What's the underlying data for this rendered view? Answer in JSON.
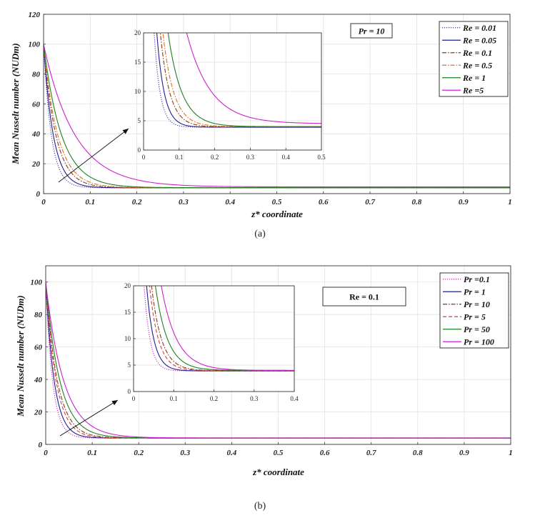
{
  "figure": {
    "panels": [
      {
        "id": "a",
        "caption": "(a)",
        "chart_data": {
          "type": "line",
          "title": "",
          "xlabel": "z* coordinate",
          "ylabel": "Mean Nusselt number (NUDm)",
          "xlim": [
            0,
            1
          ],
          "ylim": [
            0,
            120
          ],
          "xticks": [
            0,
            0.1,
            0.2,
            0.3,
            0.4,
            0.5,
            0.6,
            0.7,
            0.8,
            0.9,
            1
          ],
          "xtick_labels": [
            "0",
            "0.1",
            "0.2",
            "0.3",
            "0.4",
            "0.5",
            "0.6",
            "0.7",
            "0.8",
            "0.9",
            "1"
          ],
          "yticks": [
            0,
            20,
            40,
            60,
            80,
            100,
            120
          ],
          "ytick_labels": [
            "0",
            "20",
            "40",
            "60",
            "80",
            "100",
            "120"
          ],
          "grid": true,
          "legend_position": "top-right",
          "annotation": "Pr  = 10",
          "asymptote": 4.0,
          "series": [
            {
              "name": "Re = 0.01",
              "color": "#5a2ca0",
              "dash": "dotted",
              "decay": 60,
              "limit": 3.9
            },
            {
              "name": "Re = 0.05",
              "color": "#1f1f8f",
              "dash": "solid",
              "decay": 48,
              "limit": 3.9
            },
            {
              "name": "Re = 0.1",
              "color": "#8b3a1a",
              "dash": "dashdot",
              "decay": 38,
              "limit": 3.95
            },
            {
              "name": "Re = 0.5",
              "color": "#e07020",
              "dash": "dashdot",
              "decay": 33,
              "limit": 4.0
            },
            {
              "name": "Re = 1",
              "color": "#208020",
              "dash": "solid",
              "decay": 26,
              "limit": 4.0
            },
            {
              "name": "Re =5",
              "color": "#cc22cc",
              "dash": "solid",
              "decay": 15,
              "limit": 4.5
            }
          ],
          "inset": {
            "xlim": [
              0,
              0.5
            ],
            "ylim": [
              0,
              20
            ],
            "xticks": [
              0,
              0.1,
              0.2,
              0.3,
              0.4,
              0.5
            ],
            "xtick_labels": [
              "0",
              "0.1",
              "0.2",
              "0.3",
              "0.4",
              "0.5"
            ],
            "yticks": [
              0,
              5,
              10,
              15,
              20
            ],
            "ytick_labels": [
              "0",
              "5",
              "10",
              "15",
              "20"
            ]
          }
        }
      },
      {
        "id": "b",
        "caption": "(b)",
        "chart_data": {
          "type": "line",
          "title": "",
          "xlabel": "z* coordinate",
          "ylabel": "Mean Nusselt number (NUDm)",
          "xlim": [
            0,
            1
          ],
          "ylim": [
            0,
            110
          ],
          "xticks": [
            0,
            0.1,
            0.2,
            0.3,
            0.4,
            0.5,
            0.6,
            0.7,
            0.8,
            0.9,
            1
          ],
          "xtick_labels": [
            "0",
            "0.1",
            "0.2",
            "0.3",
            "0.4",
            "0.5",
            "0.6",
            "0.7",
            "0.8",
            "0.9",
            "1"
          ],
          "yticks": [
            0,
            20,
            40,
            60,
            80,
            100
          ],
          "ytick_labels": [
            "0",
            "20",
            "40",
            "60",
            "80",
            "100"
          ],
          "grid": true,
          "legend_position": "top-right",
          "annotation": "Re = 0.1",
          "asymptote": 3.9,
          "series": [
            {
              "name": "Pr =0.1",
              "color": "#cc22cc",
              "dash": "dotted",
              "decay": 68,
              "limit": 3.9
            },
            {
              "name": "Pr = 1",
              "color": "#1f1f8f",
              "dash": "solid",
              "decay": 55,
              "limit": 3.9
            },
            {
              "name": "Pr = 10",
              "color": "#8b3a1a",
              "dash": "dashdot",
              "decay": 40,
              "limit": 3.95
            },
            {
              "name": "Pr = 5",
              "color": "#d04040",
              "dash": "dashed",
              "decay": 45,
              "limit": 3.95
            },
            {
              "name": "Pr = 50",
              "color": "#208020",
              "dash": "solid",
              "decay": 33,
              "limit": 4.0
            },
            {
              "name": "Pr = 100",
              "color": "#cc22cc",
              "dash": "solid",
              "decay": 26,
              "limit": 4.0
            }
          ],
          "inset": {
            "xlim": [
              0,
              0.4
            ],
            "ylim": [
              0,
              20
            ],
            "xticks": [
              0,
              0.1,
              0.2,
              0.3,
              0.4
            ],
            "xtick_labels": [
              "0",
              "0.1",
              "0.2",
              "0.3",
              "0.4"
            ],
            "yticks": [
              0,
              5,
              10,
              15,
              20
            ],
            "ytick_labels": [
              "0",
              "5",
              "10",
              "15",
              "20"
            ]
          }
        }
      }
    ]
  }
}
